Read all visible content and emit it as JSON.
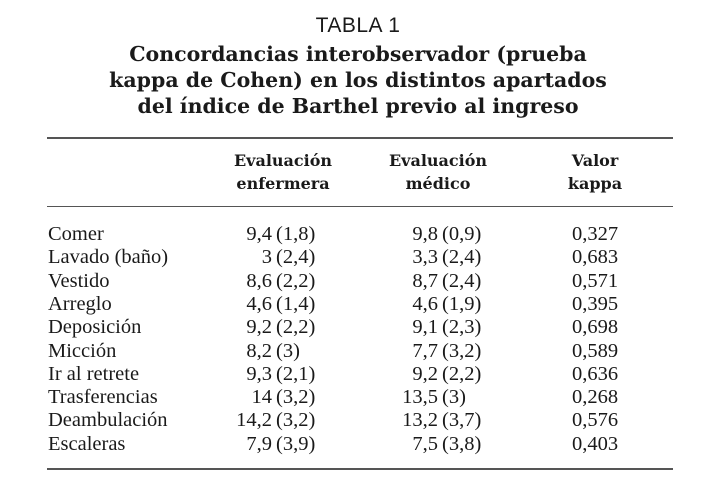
{
  "table_number": "TABLA 1",
  "title_lines": [
    "Concordancias interobservador (prueba",
    "kappa de Cohen) en los distintos apartados",
    "del índice de Barthel previo al ingreso"
  ],
  "headers": [
    {
      "line1": "Evaluación",
      "line2": "enfermera"
    },
    {
      "line1": "Evaluación",
      "line2": "médico"
    },
    {
      "line1": "Valor",
      "line2": "kappa"
    }
  ],
  "rows": [
    {
      "label": "Comer",
      "enf_value": "9,4",
      "enf_sd": "(1,8)",
      "med_value": "9,8",
      "med_sd": "(0,9)",
      "kappa": "0,327"
    },
    {
      "label": "Lavado (baño)",
      "enf_value": "3",
      "enf_sd": "(2,4)",
      "med_value": "3,3",
      "med_sd": "(2,4)",
      "kappa": "0,683"
    },
    {
      "label": "Vestido",
      "enf_value": "8,6",
      "enf_sd": "(2,2)",
      "med_value": "8,7",
      "med_sd": "(2,4)",
      "kappa": "0,571"
    },
    {
      "label": "Arreglo",
      "enf_value": "4,6",
      "enf_sd": "(1,4)",
      "med_value": "4,6",
      "med_sd": "(1,9)",
      "kappa": "0,395"
    },
    {
      "label": "Deposición",
      "enf_value": "9,2",
      "enf_sd": "(2,2)",
      "med_value": "9,1",
      "med_sd": "(2,3)",
      "kappa": "0,698"
    },
    {
      "label": "Micción",
      "enf_value": "8,2",
      "enf_sd": "(3)",
      "med_value": "7,7",
      "med_sd": "(3,2)",
      "kappa": "0,589"
    },
    {
      "label": "Ir al retrete",
      "enf_value": "9,3",
      "enf_sd": "(2,1)",
      "med_value": "9,2",
      "med_sd": "(2,2)",
      "kappa": "0,636"
    },
    {
      "label": "Trasferencias",
      "enf_value": "14",
      "enf_sd": "(3,2)",
      "med_value": "13,5",
      "med_sd": "(3)",
      "kappa": "0,268"
    },
    {
      "label": "Deambulación",
      "enf_value": "14,2",
      "enf_sd": "(3,2)",
      "med_value": "13,2",
      "med_sd": "(3,7)",
      "kappa": "0,576"
    },
    {
      "label": "Escaleras",
      "enf_value": "7,9",
      "enf_sd": "(3,9)",
      "med_value": "7,5",
      "med_sd": "(3,8)",
      "kappa": "0,403"
    }
  ]
}
